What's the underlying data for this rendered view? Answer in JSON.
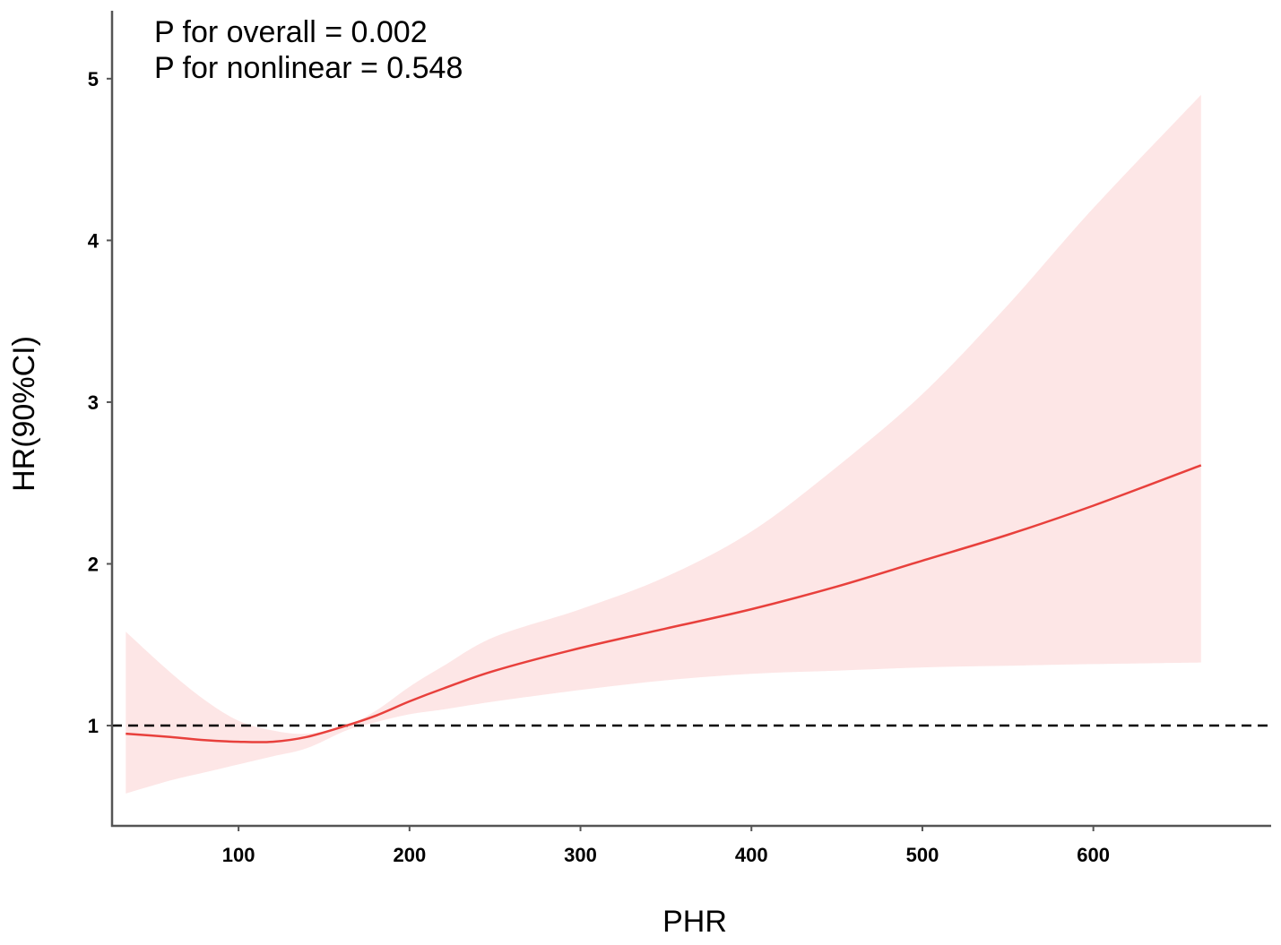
{
  "chart_data": {
    "type": "line",
    "xlabel": "PHR",
    "ylabel": "HR(90%CI)",
    "annotations": [
      "P for overall = 0.002",
      "P for nonlinear = 0.548"
    ],
    "xlim": [
      26,
      704
    ],
    "ylim": [
      0.38,
      5.42
    ],
    "xticks": [
      100,
      200,
      300,
      400,
      500,
      600
    ],
    "yticks": [
      1,
      2,
      3,
      4,
      5
    ],
    "reference_line": {
      "y": 1,
      "style": "dashed"
    },
    "grid": false,
    "series": [
      {
        "role": "estimate",
        "color": "#e8403c",
        "x": [
          34,
          60,
          80,
          100,
          120,
          140,
          163,
          180,
          200,
          220,
          250,
          300,
          350,
          400,
          450,
          500,
          550,
          600,
          663
        ],
        "y": [
          0.95,
          0.93,
          0.91,
          0.9,
          0.9,
          0.93,
          1.0,
          1.06,
          1.15,
          1.23,
          1.34,
          1.48,
          1.6,
          1.72,
          1.86,
          2.02,
          2.18,
          2.36,
          2.61
        ]
      },
      {
        "role": "ci_upper",
        "color": "#fde6e6",
        "x": [
          34,
          60,
          80,
          100,
          120,
          140,
          163,
          180,
          200,
          220,
          250,
          300,
          350,
          400,
          450,
          500,
          550,
          600,
          663
        ],
        "y": [
          1.58,
          1.33,
          1.16,
          1.03,
          0.97,
          0.95,
          1.0,
          1.09,
          1.24,
          1.37,
          1.55,
          1.72,
          1.92,
          2.2,
          2.6,
          3.05,
          3.6,
          4.2,
          4.9
        ]
      },
      {
        "role": "ci_lower",
        "color": "#fde6e6",
        "x": [
          34,
          60,
          80,
          100,
          120,
          140,
          163,
          180,
          200,
          220,
          250,
          300,
          350,
          400,
          450,
          500,
          550,
          600,
          663
        ],
        "y": [
          0.58,
          0.66,
          0.71,
          0.76,
          0.81,
          0.86,
          0.97,
          1.02,
          1.07,
          1.1,
          1.15,
          1.22,
          1.28,
          1.32,
          1.34,
          1.36,
          1.37,
          1.38,
          1.39
        ]
      }
    ]
  }
}
